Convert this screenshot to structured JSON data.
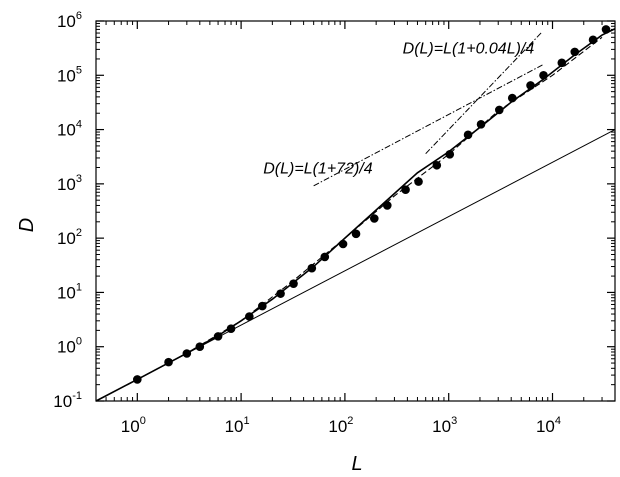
{
  "chart_data": {
    "type": "scatter",
    "xlabel": "L",
    "ylabel": "D",
    "xscale": "log",
    "yscale": "log",
    "xlim": [
      0.4,
      40000
    ],
    "ylim": [
      0.1,
      1000000
    ],
    "x_ticks": [
      {
        "value": 1,
        "base": "10",
        "exp": "0"
      },
      {
        "value": 10,
        "base": "10",
        "exp": "1"
      },
      {
        "value": 100,
        "base": "10",
        "exp": "2"
      },
      {
        "value": 1000,
        "base": "10",
        "exp": "3"
      },
      {
        "value": 10000,
        "base": "10",
        "exp": "4"
      }
    ],
    "y_ticks": [
      {
        "value": 0.1,
        "base": "10",
        "exp": "-1"
      },
      {
        "value": 1,
        "base": "10",
        "exp": "0"
      },
      {
        "value": 10,
        "base": "10",
        "exp": "1"
      },
      {
        "value": 100,
        "base": "10",
        "exp": "2"
      },
      {
        "value": 1000,
        "base": "10",
        "exp": "3"
      },
      {
        "value": 10000,
        "base": "10",
        "exp": "4"
      },
      {
        "value": 100000,
        "base": "10",
        "exp": "5"
      },
      {
        "value": 1000000,
        "base": "10",
        "exp": "6"
      }
    ],
    "grid": false,
    "annotations": [
      {
        "text": "D(L)=L(1+0.04L)/4",
        "at": [
          1550,
          250000
        ]
      },
      {
        "text": "D(L)=L(1+72)/4",
        "at": [
          55,
          1550
        ]
      }
    ],
    "series": [
      {
        "style": "markers",
        "color": "#000000",
        "x": [
          1,
          2,
          3,
          4,
          6,
          8,
          12,
          16,
          24,
          32,
          48,
          64,
          96,
          128,
          192,
          256,
          384,
          512,
          768,
          1024,
          1536,
          2048,
          3072,
          4096,
          6144,
          8192,
          12288,
          16384,
          24576,
          32768
        ],
        "y": [
          0.25,
          0.52,
          0.75,
          1.0,
          1.55,
          2.15,
          3.6,
          5.6,
          9.5,
          14.5,
          28,
          45,
          78,
          120,
          230,
          400,
          780,
          1100,
          2200,
          3500,
          8000,
          12500,
          23000,
          38000,
          65000,
          100000,
          170000,
          270000,
          450000,
          700000
        ]
      },
      {
        "style": "solid-curve",
        "color": "#000000",
        "x": [
          0.4,
          1,
          3,
          6,
          10,
          20,
          50,
          100,
          200,
          500,
          1000,
          2000,
          4000,
          8000,
          16000,
          30000,
          40000
        ],
        "y": [
          0.1,
          0.25,
          0.76,
          1.6,
          3.0,
          7.5,
          30,
          100,
          330,
          1600,
          3900,
          11000,
          32000,
          82000,
          230000,
          550000,
          720000
        ]
      },
      {
        "style": "dashed-curve",
        "color": "#000000",
        "x": [
          1,
          3,
          10,
          30,
          100,
          300,
          1000,
          3000,
          10000,
          30000
        ],
        "y": [
          0.25,
          0.76,
          3.0,
          15,
          100,
          600,
          3500,
          22000,
          100000,
          500000
        ]
      },
      {
        "style": "solid-line",
        "color": "#000000",
        "x": [
          0.4,
          40000
        ],
        "y": [
          0.1,
          10000
        ]
      },
      {
        "style": "dashdot-line",
        "color": "#000000",
        "x": [
          50,
          8000
        ],
        "y": [
          920,
          155000
        ]
      },
      {
        "style": "dashdot-line",
        "color": "#000000",
        "x": [
          600,
          8000
        ],
        "y": [
          3600,
          640000
        ]
      }
    ]
  }
}
